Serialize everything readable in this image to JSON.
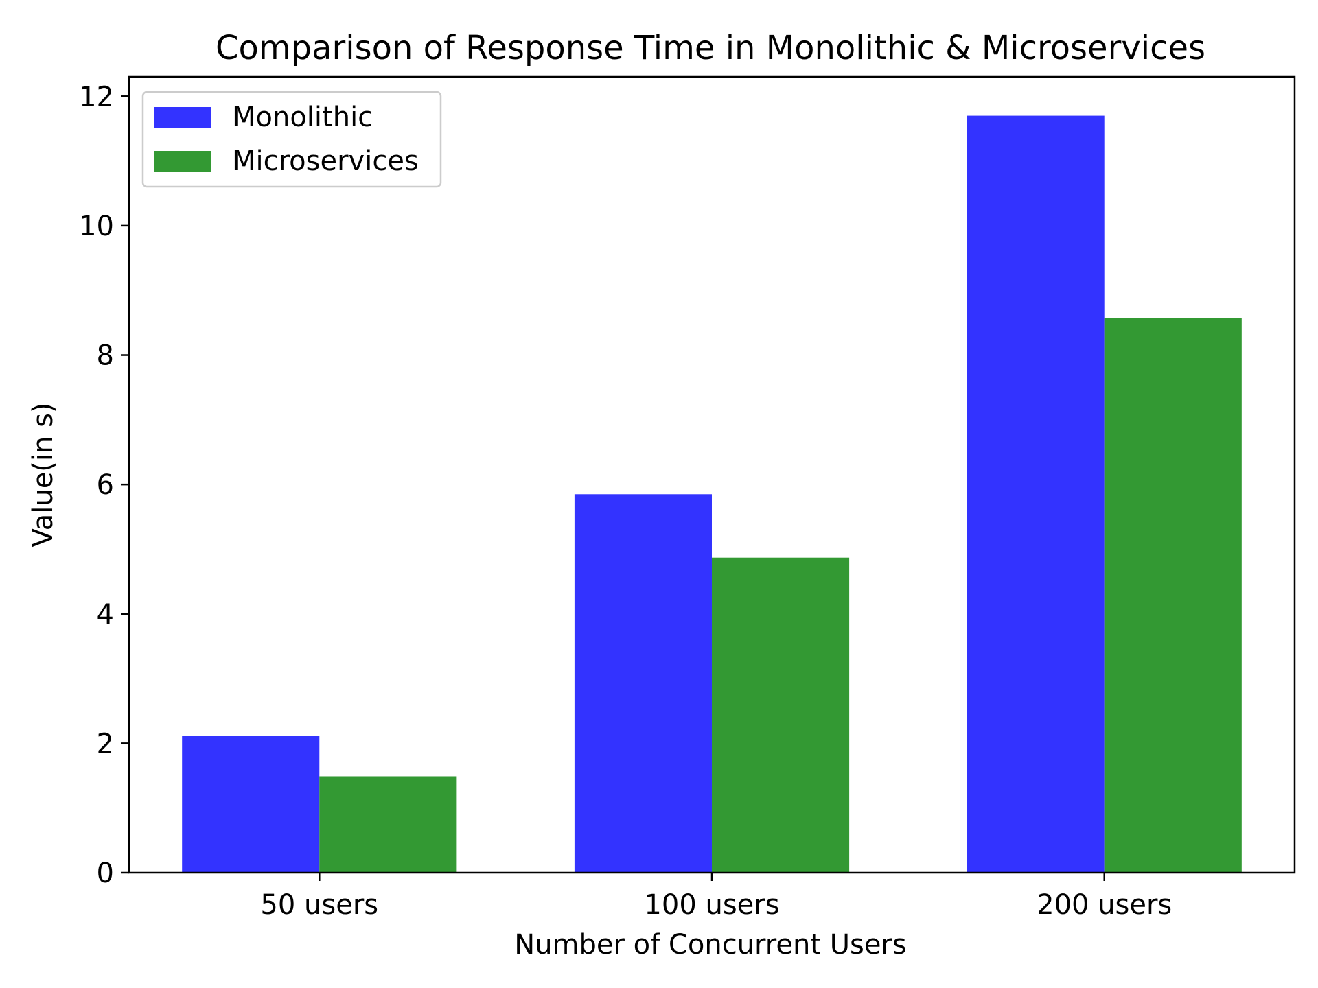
{
  "chart_data": {
    "type": "bar",
    "title": "Comparison of Response Time in Monolithic & Microservices",
    "xlabel": "Number of Concurrent Users",
    "ylabel": "Value(in s)",
    "categories": [
      "50 users",
      "100 users",
      "200 users"
    ],
    "series": [
      {
        "name": "Monolithic",
        "values": [
          2.12,
          5.85,
          11.7
        ],
        "color": "#3333ff"
      },
      {
        "name": "Microservices",
        "values": [
          1.49,
          4.87,
          8.57
        ],
        "color": "#339933"
      }
    ],
    "ylim": [
      0,
      12.3
    ],
    "yticks": [
      0,
      2,
      4,
      6,
      8,
      10,
      12
    ],
    "ytick_labels": [
      "0",
      "2",
      "4",
      "6",
      "8",
      "10",
      "12"
    ],
    "legend": "top-left",
    "grid": false
  }
}
